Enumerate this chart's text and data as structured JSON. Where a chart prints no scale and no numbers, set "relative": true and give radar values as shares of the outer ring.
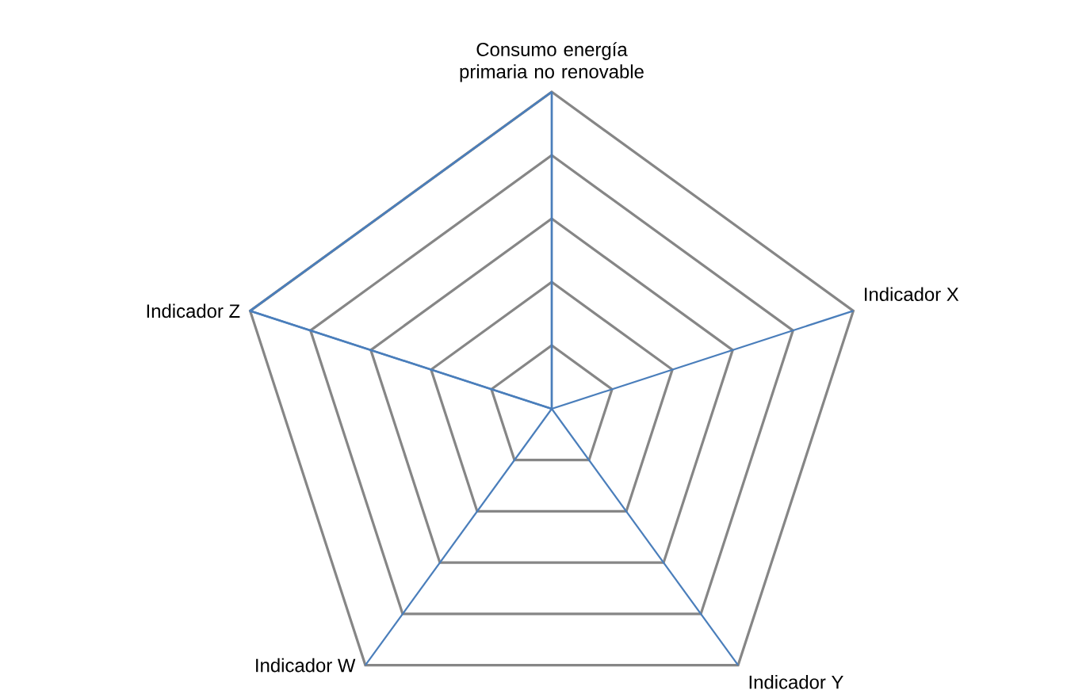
{
  "chart_data": {
    "type": "radar",
    "relative": true,
    "categories": [
      "Consumo energía primaria no renovable",
      "Indicador X",
      "Indicador Y",
      "Indicador W",
      "Indicador Z"
    ],
    "series": [
      {
        "color": "#4a7ebb",
        "values": [
          1,
          0,
          0,
          0,
          1
        ]
      }
    ]
  }
}
